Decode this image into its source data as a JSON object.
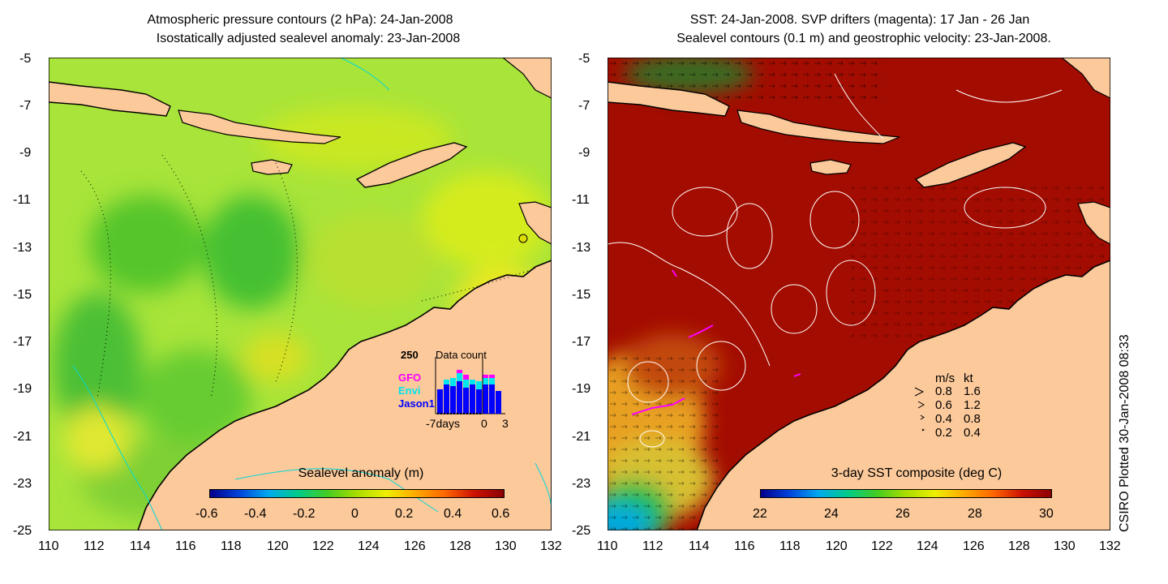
{
  "left_panel": {
    "title_line1": "Atmospheric pressure contours (2 hPa): 24-Jan-2008",
    "title_line2": "Isostatically adjusted sealevel anomaly: 23-Jan-2008",
    "colorbar": {
      "title": "Sealevel anomaly (m)",
      "ticks": [
        "-0.6",
        "-0.4",
        "-0.2",
        "0",
        "0.2",
        "0.4",
        "0.6"
      ]
    },
    "data_count_inset": {
      "max_label": "250",
      "title": "Data count",
      "satellites": [
        {
          "name": "GFO",
          "color": "#ff00ff"
        },
        {
          "name": "Envi",
          "color": "#00e5ee"
        },
        {
          "name": "Jason1",
          "color": "#0000ff"
        }
      ],
      "x_start_label": "-7days",
      "x_zero_label": "0",
      "x_end_label": "3"
    }
  },
  "right_panel": {
    "title_line1": "SST: 24-Jan-2008. SVP drifters (magenta): 17 Jan - 26 Jan",
    "title_line2": "Sealevel contours (0.1 m) and geostrophic velocity: 23-Jan-2008.",
    "colorbar": {
      "title": "3-day SST composite (deg C)",
      "ticks": [
        "22",
        "24",
        "26",
        "28",
        "30"
      ]
    },
    "velocity_legend": {
      "header_ms": "m/s",
      "header_kt": "kt",
      "rows": [
        {
          "ms": "0.8",
          "kt": "1.6"
        },
        {
          "ms": "0.6",
          "kt": "1.2"
        },
        {
          "ms": "0.4",
          "kt": "0.8"
        },
        {
          "ms": "0.2",
          "kt": "0.4"
        }
      ]
    }
  },
  "axes": {
    "lat_ticks": [
      "-5",
      "-7",
      "-9",
      "-11",
      "-13",
      "-15",
      "-17",
      "-19",
      "-21",
      "-23",
      "-25"
    ],
    "lon_ticks": [
      "110",
      "112",
      "114",
      "116",
      "118",
      "120",
      "122",
      "124",
      "126",
      "128",
      "130",
      "132"
    ]
  },
  "side_note": "CSIRO Plotted 30-Jan-2008 08:33",
  "colors": {
    "land": "#fcc99a",
    "coast": "#000000",
    "ssa_colormap": [
      "#00008b",
      "#0044dd",
      "#00aaee",
      "#00cc88",
      "#44cc22",
      "#aadd00",
      "#eeee00",
      "#ffaa00",
      "#ff6600",
      "#cc1100",
      "#8b0000"
    ],
    "sst_colormap": [
      "#00008b",
      "#0044dd",
      "#00aaee",
      "#00cc88",
      "#44cc22",
      "#aadd00",
      "#eeee00",
      "#ffaa00",
      "#ff6600",
      "#cc1100",
      "#8b0000"
    ],
    "sst_dominant": "#a30c00",
    "ssa_dominant": "#a8e43a"
  }
}
